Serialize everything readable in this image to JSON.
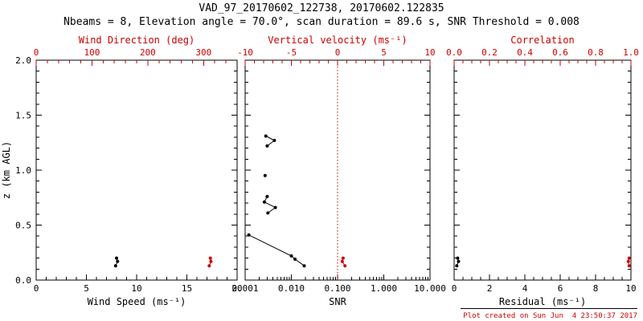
{
  "chart_data": {
    "type": "scatter",
    "title": "VAD_97_20170602_122738, 20170602.122835",
    "subtitle": "Nbeams = 8, Elevation angle = 70.0°, scan duration = 89.6 s, SNR Threshold = 0.008",
    "footer": "Plot created on Sun Jun  4 23:50:37 2017",
    "ylabel": "z (km AGL)",
    "ylim": [
      0,
      2
    ],
    "yticks": {
      "values": [
        0,
        0.5,
        1,
        1.5,
        2
      ],
      "labels": [
        "0.0",
        "0.5",
        "1.0",
        "1.5",
        "2.0"
      ],
      "minor_step": 0.1
    },
    "colors": {
      "axis_primary": "#000000",
      "axis_secondary": "#cc0000",
      "background": "#ffffff"
    },
    "panels": [
      {
        "id": "wind",
        "bottom_axis": {
          "label": "Wind Speed (ms⁻¹)",
          "min": 0,
          "max": 20,
          "tick_values": [
            0,
            5,
            10,
            15,
            20
          ],
          "tick_labels": [
            "0",
            "5",
            "10",
            "15",
            "20"
          ],
          "minor_step": 1,
          "color": "#000000"
        },
        "top_axis": {
          "label": "Wind Direction (deg)",
          "min": 0,
          "max": 360,
          "tick_values": [
            0,
            100,
            200,
            300
          ],
          "tick_labels": [
            "0",
            "100",
            "200",
            "300"
          ],
          "minor_step": 20,
          "color": "#cc0000"
        },
        "series": [
          {
            "name": "wind-speed",
            "axis": "bottom",
            "color": "#000000",
            "line": true,
            "points": [
              [
                7.9,
                0.13
              ],
              [
                8.1,
                0.17
              ],
              [
                8.0,
                0.2
              ]
            ]
          },
          {
            "name": "wind-direction",
            "axis": "top",
            "color": "#cc0000",
            "line": true,
            "points": [
              [
                310,
                0.13
              ],
              [
                313,
                0.17
              ],
              [
                312,
                0.2
              ]
            ]
          }
        ]
      },
      {
        "id": "snr",
        "bottom_axis": {
          "label": "SNR",
          "scale": "log",
          "min": 0.001,
          "max": 10,
          "tick_values": [
            0.001,
            0.01,
            0.1,
            1,
            10
          ],
          "tick_labels": [
            "0.001",
            "0.010",
            "0.100",
            "1.000",
            "10.000"
          ],
          "color": "#000000"
        },
        "top_axis": {
          "label": "Vertical velocity (ms⁻¹)",
          "min": -10,
          "max": 10,
          "tick_values": [
            -10,
            -5,
            0,
            5,
            10
          ],
          "tick_labels": [
            "-10",
            "-5",
            "0",
            "5",
            "10"
          ],
          "minor_step": 1,
          "color": "#cc0000"
        },
        "ref_line": {
          "axis": "top",
          "value": 0,
          "color": "#cc0000",
          "style": "dotted"
        },
        "series": [
          {
            "name": "snr-profile-lower",
            "axis": "bottom",
            "color": "#000000",
            "line": true,
            "points": [
              [
                0.019,
                0.13
              ],
              [
                0.012,
                0.19
              ],
              [
                0.01,
                0.22
              ],
              [
                0.0012,
                0.41
              ]
            ]
          },
          {
            "name": "snr-profile-mid",
            "axis": "bottom",
            "color": "#000000",
            "line": true,
            "points": [
              [
                0.0031,
                0.61
              ],
              [
                0.0045,
                0.66
              ],
              [
                0.0026,
                0.71
              ],
              [
                0.003,
                0.76
              ]
            ]
          },
          {
            "name": "snr-profile-isolated",
            "axis": "bottom",
            "color": "#000000",
            "line": false,
            "points": [
              [
                0.0027,
                0.95
              ]
            ]
          },
          {
            "name": "snr-profile-upper",
            "axis": "bottom",
            "color": "#000000",
            "line": true,
            "points": [
              [
                0.003,
                1.22
              ],
              [
                0.0043,
                1.27
              ],
              [
                0.0028,
                1.31
              ]
            ]
          },
          {
            "name": "vertical-velocity",
            "axis": "top",
            "color": "#cc0000",
            "line": true,
            "points": [
              [
                0.8,
                0.13
              ],
              [
                0.5,
                0.17
              ],
              [
                0.6,
                0.2
              ]
            ]
          }
        ]
      },
      {
        "id": "residual",
        "bottom_axis": {
          "label": "Residual (ms⁻¹)",
          "min": 0,
          "max": 10,
          "tick_values": [
            0,
            2,
            4,
            6,
            8,
            10
          ],
          "tick_labels": [
            "0",
            "2",
            "4",
            "6",
            "8",
            "10"
          ],
          "minor_step": 0.5,
          "color": "#000000"
        },
        "top_axis": {
          "label": "Correlation",
          "min": 0,
          "max": 1,
          "tick_values": [
            0,
            0.2,
            0.4,
            0.6,
            0.8,
            1
          ],
          "tick_labels": [
            "0.0",
            "0.2",
            "0.4",
            "0.6",
            "0.8",
            "1.0"
          ],
          "minor_step": 0.05,
          "color": "#cc0000"
        },
        "series": [
          {
            "name": "residual",
            "axis": "bottom",
            "color": "#000000",
            "line": true,
            "points": [
              [
                0.15,
                0.13
              ],
              [
                0.25,
                0.17
              ],
              [
                0.2,
                0.2
              ]
            ]
          },
          {
            "name": "correlation",
            "axis": "top",
            "color": "#cc0000",
            "line": true,
            "points": [
              [
                0.99,
                0.13
              ],
              [
                0.985,
                0.17
              ],
              [
                0.99,
                0.2
              ]
            ]
          }
        ]
      }
    ]
  }
}
